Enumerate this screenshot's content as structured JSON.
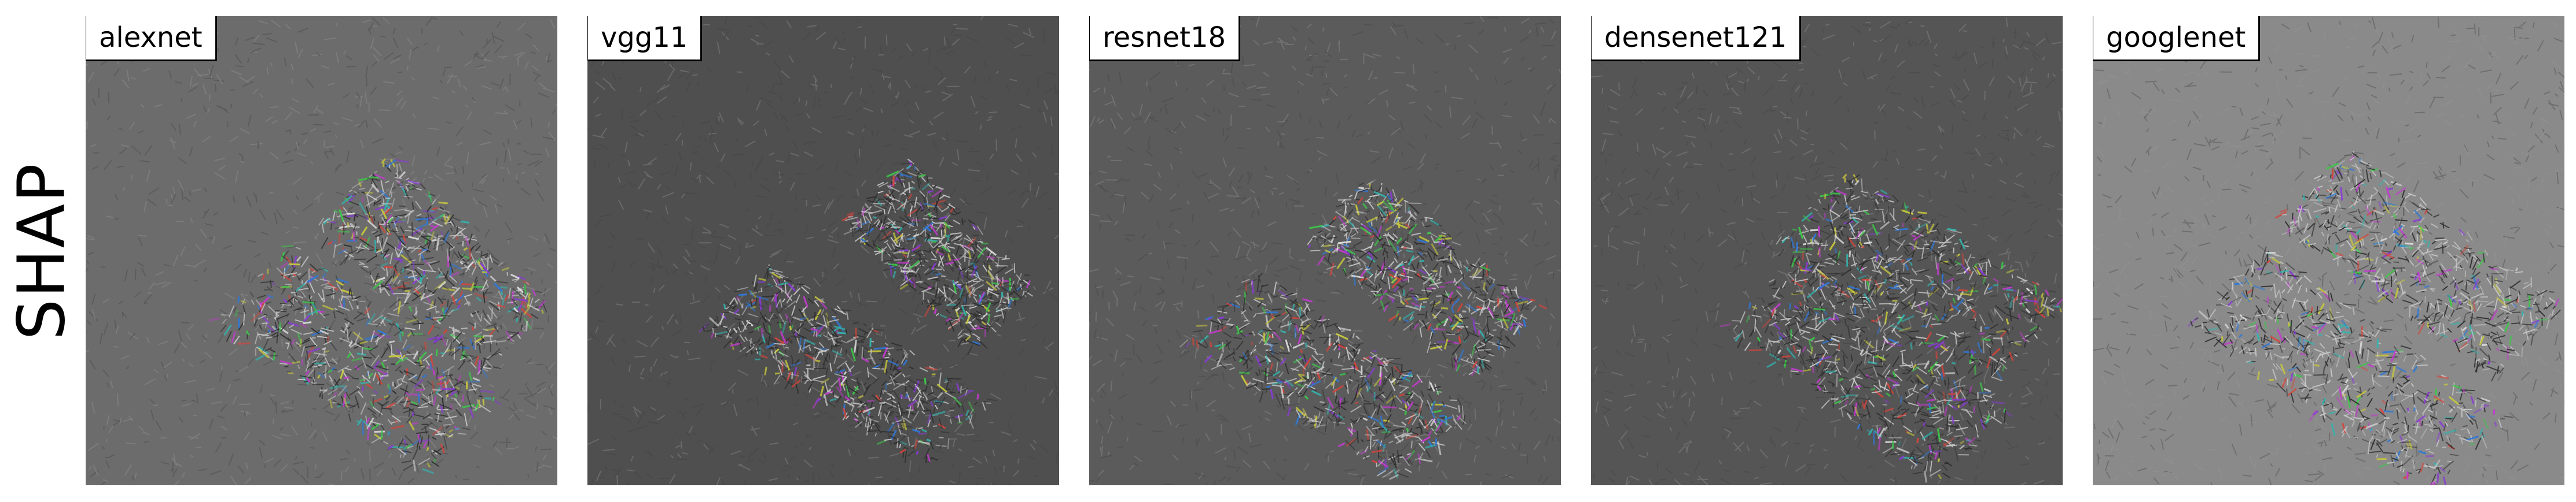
{
  "row_label": "SHAP",
  "panels": [
    {
      "label": "alexnet",
      "background": "#6c6c6c"
    },
    {
      "label": "vgg11",
      "background": "#4f4f4f"
    },
    {
      "label": "resnet18",
      "background": "#5b5b5b"
    },
    {
      "label": "densenet121",
      "background": "#555555"
    },
    {
      "label": "googlenet",
      "background": "#8a8a8a"
    }
  ]
}
